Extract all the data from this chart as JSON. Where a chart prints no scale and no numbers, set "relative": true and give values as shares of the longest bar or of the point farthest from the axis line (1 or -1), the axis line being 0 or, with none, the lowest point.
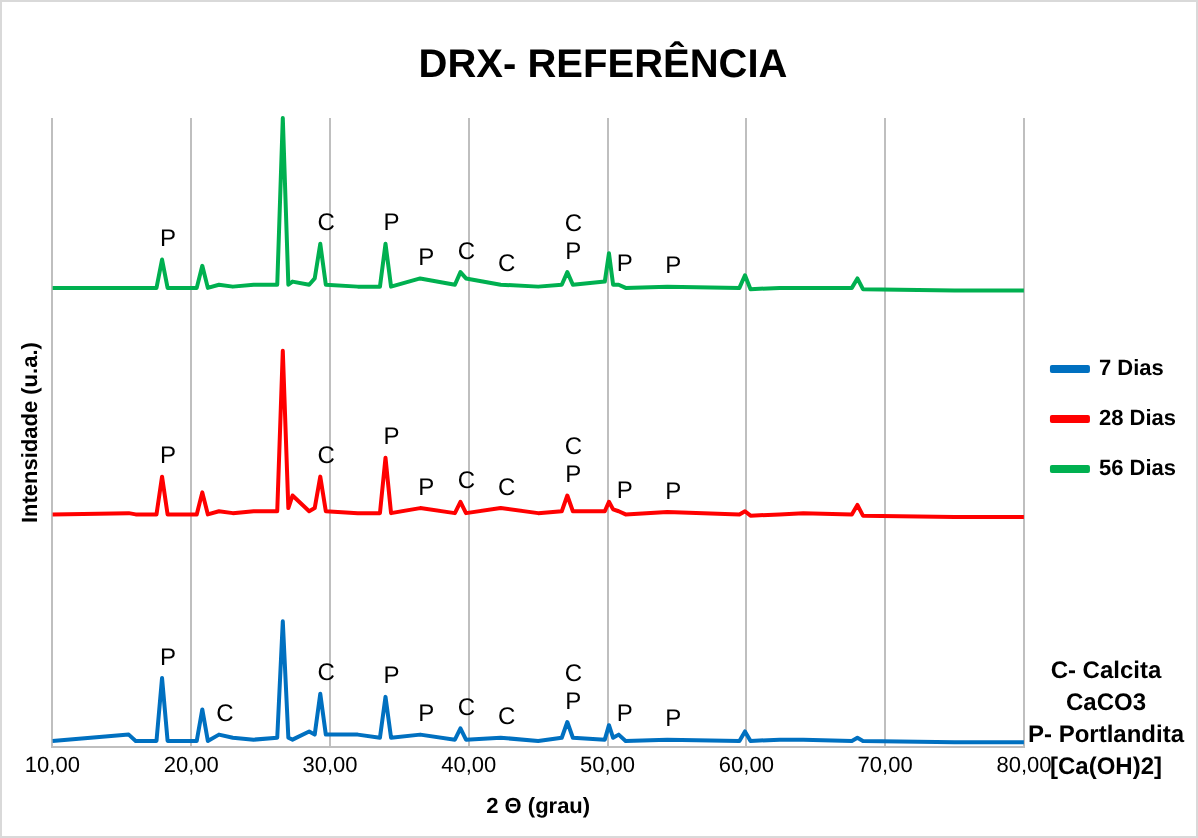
{
  "chart_data": {
    "type": "line",
    "title": "DRX- REFERÊNCIA",
    "xlabel": "2 Θ (grau)",
    "ylabel": "Intensidade (u.a.)",
    "relative": true,
    "grid": "x",
    "legend": "right",
    "marker": "none",
    "xlim": [
      10,
      80
    ],
    "xticks": [
      {
        "value": 10,
        "label": "10,00"
      },
      {
        "value": 20,
        "label": "20,00"
      },
      {
        "value": 30,
        "label": "30,00"
      },
      {
        "value": 40,
        "label": "40,00"
      },
      {
        "value": 50,
        "label": "50,00"
      },
      {
        "value": 60,
        "label": "60,00"
      },
      {
        "value": 70,
        "label": "70,00"
      },
      {
        "value": 80,
        "label": "80,00"
      }
    ],
    "x": [
      10,
      15.5,
      16,
      17.5,
      17.9,
      18.3,
      20.4,
      20.8,
      21.2,
      22.0,
      23.0,
      24.5,
      26.2,
      26.6,
      27.0,
      27.3,
      28.5,
      28.9,
      29.3,
      29.7,
      32,
      33.6,
      34.0,
      34.4,
      36.5,
      39.0,
      39.4,
      39.8,
      42.3,
      45,
      46.7,
      47.1,
      47.5,
      49.8,
      50.1,
      50.4,
      50.8,
      51.3,
      54.3,
      59.5,
      59.9,
      60.3,
      62.4,
      64.1,
      67.6,
      68.0,
      68.4,
      75,
      80
    ],
    "series": [
      {
        "name": "7 Dias",
        "color": "#0070c0",
        "values": [
          0.01,
          0.02,
          0.01,
          0.01,
          0.11,
          0.01,
          0.01,
          0.06,
          0.01,
          0.02,
          0.015,
          0.012,
          0.015,
          0.2,
          0.015,
          0.012,
          0.025,
          0.02,
          0.085,
          0.02,
          0.02,
          0.015,
          0.08,
          0.015,
          0.02,
          0.012,
          0.03,
          0.012,
          0.015,
          0.01,
          0.015,
          0.04,
          0.015,
          0.012,
          0.035,
          0.015,
          0.02,
          0.01,
          0.012,
          0.01,
          0.025,
          0.01,
          0.012,
          0.012,
          0.01,
          0.015,
          0.01,
          0.008,
          0.008
        ]
      },
      {
        "name": "28 Dias",
        "color": "#ff0000",
        "values": [
          0.37,
          0.372,
          0.37,
          0.37,
          0.43,
          0.37,
          0.37,
          0.405,
          0.37,
          0.375,
          0.372,
          0.375,
          0.375,
          0.63,
          0.38,
          0.4,
          0.375,
          0.38,
          0.43,
          0.375,
          0.372,
          0.372,
          0.46,
          0.372,
          0.38,
          0.372,
          0.39,
          0.372,
          0.38,
          0.372,
          0.375,
          0.4,
          0.375,
          0.375,
          0.39,
          0.378,
          0.375,
          0.37,
          0.374,
          0.37,
          0.375,
          0.368,
          0.37,
          0.372,
          0.37,
          0.385,
          0.368,
          0.366,
          0.366
        ]
      },
      {
        "name": "56 Dias",
        "color": "#00b050",
        "values": [
          0.73,
          0.73,
          0.73,
          0.73,
          0.775,
          0.73,
          0.73,
          0.765,
          0.73,
          0.735,
          0.732,
          0.735,
          0.735,
          1.0,
          0.735,
          0.74,
          0.735,
          0.745,
          0.8,
          0.735,
          0.732,
          0.732,
          0.8,
          0.732,
          0.745,
          0.735,
          0.755,
          0.745,
          0.735,
          0.732,
          0.735,
          0.755,
          0.735,
          0.74,
          0.785,
          0.735,
          0.735,
          0.73,
          0.732,
          0.73,
          0.75,
          0.728,
          0.73,
          0.73,
          0.73,
          0.745,
          0.728,
          0.726,
          0.726
        ]
      }
    ],
    "annotations": [
      {
        "text": "P",
        "x": 17.9,
        "y": 0.11
      },
      {
        "text": "C",
        "x": 22.0,
        "y": 0.02
      },
      {
        "text": "C",
        "x": 29.3,
        "y": 0.085
      },
      {
        "text": "P",
        "x": 34.0,
        "y": 0.08
      },
      {
        "text": "P",
        "x": 36.5,
        "y": 0.02
      },
      {
        "text": "C",
        "x": 39.4,
        "y": 0.03
      },
      {
        "text": "C",
        "x": 42.3,
        "y": 0.015
      },
      {
        "text": "P",
        "x": 47.1,
        "y": 0.04
      },
      {
        "text": "C",
        "x": 47.1,
        "y": 0.04
      },
      {
        "text": "P",
        "x": 50.8,
        "y": 0.02
      },
      {
        "text": "P",
        "x": 54.3,
        "y": 0.012
      },
      {
        "text": "P",
        "x": 17.9,
        "y": 0.43
      },
      {
        "text": "C",
        "x": 29.3,
        "y": 0.43
      },
      {
        "text": "P",
        "x": 34.0,
        "y": 0.46
      },
      {
        "text": "P",
        "x": 36.5,
        "y": 0.38
      },
      {
        "text": "C",
        "x": 39.4,
        "y": 0.39
      },
      {
        "text": "C",
        "x": 42.3,
        "y": 0.38
      },
      {
        "text": "P",
        "x": 47.1,
        "y": 0.4
      },
      {
        "text": "C",
        "x": 47.1,
        "y": 0.4
      },
      {
        "text": "P",
        "x": 50.8,
        "y": 0.375
      },
      {
        "text": "P",
        "x": 54.3,
        "y": 0.374
      },
      {
        "text": "P",
        "x": 17.9,
        "y": 0.775
      },
      {
        "text": "C",
        "x": 29.3,
        "y": 0.8
      },
      {
        "text": "P",
        "x": 34.0,
        "y": 0.8
      },
      {
        "text": "P",
        "x": 36.5,
        "y": 0.745
      },
      {
        "text": "C",
        "x": 39.4,
        "y": 0.755
      },
      {
        "text": "C",
        "x": 42.3,
        "y": 0.735
      },
      {
        "text": "P",
        "x": 47.1,
        "y": 0.755
      },
      {
        "text": "C",
        "x": 47.1,
        "y": 0.755
      },
      {
        "text": "P",
        "x": 50.8,
        "y": 0.735
      },
      {
        "text": "P",
        "x": 54.3,
        "y": 0.732
      },
      "C- Calcita",
      "CaCO3",
      "P- Portlandita",
      "[Ca(OH)2]"
    ]
  }
}
